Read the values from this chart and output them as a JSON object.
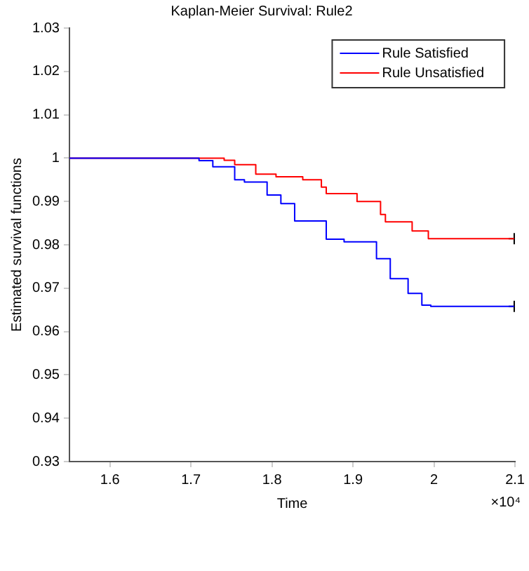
{
  "chart_data": {
    "type": "step",
    "title": "Kaplan-Meier Survival: Rule2",
    "xlabel": "Time",
    "ylabel": "Estimated survival functions",
    "annotations": [
      "×10⁴"
    ],
    "xlim": [
      1.55,
      2.1
    ],
    "xticks": [
      1.6,
      1.7,
      1.8,
      1.9,
      2,
      2.1
    ],
    "ylim": [
      0.93,
      1.03
    ],
    "yticks": [
      0.93,
      0.94,
      0.95,
      0.96,
      0.97,
      0.98,
      0.99,
      1,
      1.01,
      1.02,
      1.03
    ],
    "grid": false,
    "legend": "top right",
    "line_style": "solid",
    "marker": "none",
    "series": [
      {
        "name": "Rule Satisfied",
        "color": "#0000ff",
        "x": [
          1.55,
          1.705,
          1.71,
          1.727,
          1.754,
          1.766,
          1.794,
          1.811,
          1.828,
          1.867,
          1.889,
          1.929,
          1.946,
          1.968,
          1.985,
          1.996,
          2.099
        ],
        "values": [
          1,
          1,
          0.9994,
          0.998,
          0.995,
          0.9945,
          0.9915,
          0.9895,
          0.9855,
          0.9813,
          0.9807,
          0.9768,
          0.9722,
          0.9688,
          0.9661,
          0.9658,
          0.9658
        ]
      },
      {
        "name": "Rule Unsatisfied",
        "color": "#ff0000",
        "x": [
          1.55,
          1.72,
          1.741,
          1.754,
          1.78,
          1.805,
          1.838,
          1.861,
          1.867,
          1.905,
          1.934,
          1.94,
          1.973,
          1.993,
          2.099
        ],
        "values": [
          1,
          1,
          0.9995,
          0.9985,
          0.9963,
          0.9957,
          0.995,
          0.9933,
          0.9918,
          0.99,
          0.987,
          0.9853,
          0.9832,
          0.9814,
          0.9814
        ]
      },
      {
        "type": "scatter",
        "marker": "cross",
        "color": "#000000",
        "x": [
          2.099,
          2.099
        ],
        "values": [
          0.9658,
          0.9814
        ]
      }
    ]
  }
}
